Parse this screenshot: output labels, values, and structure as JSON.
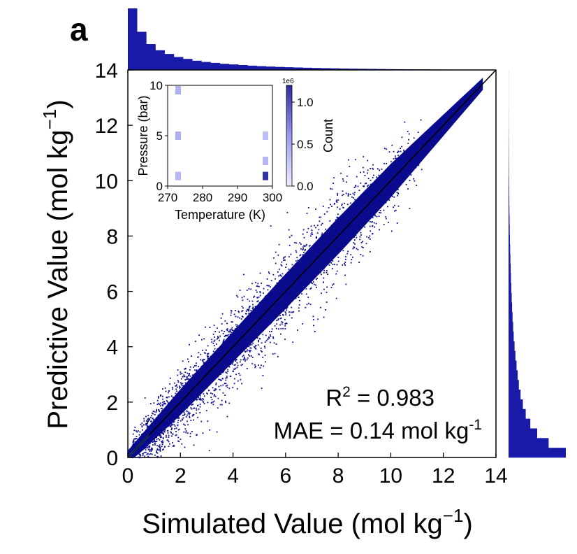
{
  "panel_label": "a",
  "chart_data": [
    {
      "type": "heatmap",
      "role": "main-parity-plot",
      "xlabel": "Simulated Value (mol kg",
      "xlabel_sup": "−1",
      "xlabel_close": ")",
      "ylabel": "Predictive Value (mol kg",
      "ylabel_sup": "−1",
      "ylabel_close": ")",
      "xlim": [
        0,
        14
      ],
      "ylim": [
        0,
        14
      ],
      "x_ticks": [
        0,
        2,
        4,
        6,
        8,
        10,
        12,
        14
      ],
      "y_ticks": [
        0,
        2,
        4,
        6,
        8,
        10,
        12,
        14
      ],
      "parity_line": {
        "from": [
          0,
          0
        ],
        "to": [
          14,
          14
        ],
        "color": "#000000"
      },
      "point_color": "#0a0a8c",
      "density_band_half_width": [
        {
          "x": 0,
          "w": 0.45
        },
        {
          "x": 2,
          "w": 0.85
        },
        {
          "x": 4,
          "w": 1.0
        },
        {
          "x": 6,
          "w": 1.15
        },
        {
          "x": 8,
          "w": 1.2
        },
        {
          "x": 10,
          "w": 1.1
        },
        {
          "x": 12,
          "w": 0.7
        },
        {
          "x": 13.5,
          "w": 0.4
        }
      ],
      "annotations": {
        "r2_prefix": "R",
        "r2_sup": "2",
        "r2_value": " = 0.983",
        "mae_text": "MAE = 0.14 mol kg",
        "mae_sup": "-1"
      },
      "grid": false
    },
    {
      "type": "bar",
      "role": "top-marginal-histogram",
      "x_range": [
        0,
        14
      ],
      "shape": "decaying",
      "relative_counts": [
        1.0,
        0.62,
        0.42,
        0.32,
        0.26,
        0.21,
        0.18,
        0.15,
        0.13,
        0.115,
        0.1,
        0.09,
        0.08,
        0.07,
        0.062,
        0.055,
        0.049,
        0.044,
        0.04,
        0.036,
        0.032,
        0.029,
        0.026,
        0.023,
        0.021,
        0.019,
        0.017,
        0.015,
        0.013,
        0.012,
        0.011,
        0.01,
        0.009,
        0.008,
        0.007,
        0.006,
        0.005,
        0.004,
        0.003,
        0.002
      ],
      "color": "#1a1aa8"
    },
    {
      "type": "bar",
      "role": "right-marginal-histogram",
      "y_range": [
        0,
        14
      ],
      "shape": "decaying",
      "relative_counts": [
        1.0,
        0.7,
        0.5,
        0.38,
        0.3,
        0.25,
        0.21,
        0.18,
        0.16,
        0.14,
        0.12,
        0.105,
        0.09,
        0.08,
        0.07,
        0.062,
        0.055,
        0.048,
        0.042,
        0.037,
        0.032,
        0.028,
        0.024,
        0.021,
        0.018,
        0.015,
        0.013,
        0.011,
        0.009,
        0.007,
        0.006,
        0.005,
        0.004,
        0.003,
        0.002,
        0.002,
        0.001,
        0.001,
        0.001,
        0.001
      ],
      "color": "#1a1aa8"
    },
    {
      "type": "heatmap",
      "role": "inset-condition-histogram",
      "xlabel": "Temperature (K)",
      "ylabel": "Pressure (bar)",
      "xlim": [
        270,
        300
      ],
      "ylim": [
        0,
        10
      ],
      "x_ticks": [
        270,
        280,
        290,
        300
      ],
      "y_ticks": [
        0,
        5,
        10
      ],
      "cells": [
        {
          "x": 273,
          "y": 10,
          "count": 0.45
        },
        {
          "x": 273,
          "y": 5,
          "count": 0.45
        },
        {
          "x": 273,
          "y": 1,
          "count": 0.4
        },
        {
          "x": 298,
          "y": 5,
          "count": 0.35
        },
        {
          "x": 298,
          "y": 2.5,
          "count": 0.4
        },
        {
          "x": 298,
          "y": 1,
          "count": 1.15
        }
      ],
      "colorbar": {
        "label": "Count",
        "scale_text": "1e6",
        "ticks": [
          0.0,
          0.5,
          1.0
        ],
        "tick_labels": [
          "0.0",
          "0.5",
          "1.0"
        ],
        "range": [
          0,
          1.2
        ]
      }
    }
  ]
}
